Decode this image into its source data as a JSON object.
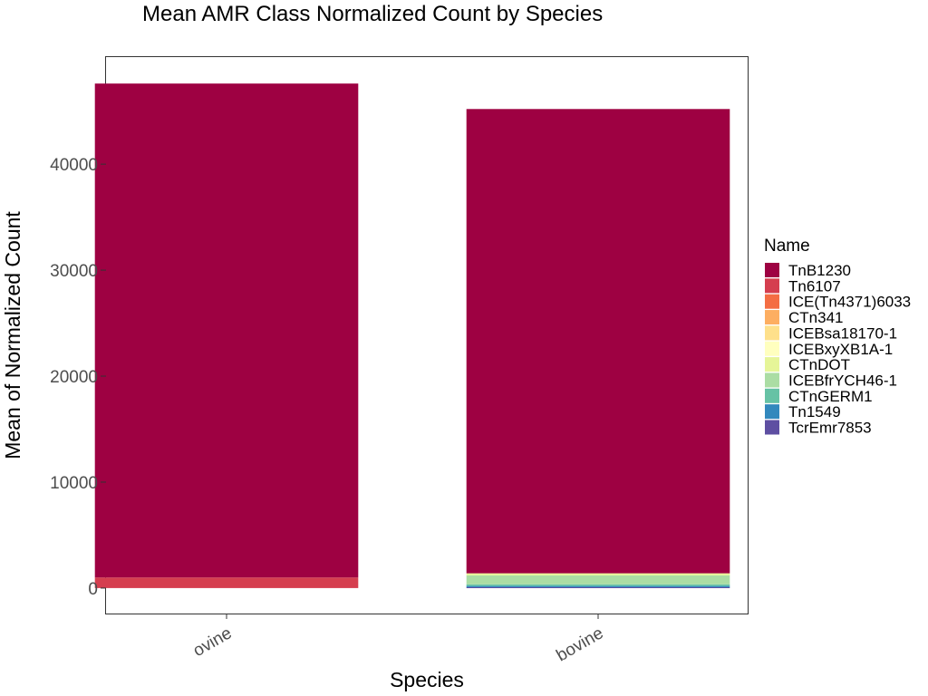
{
  "chart_data": {
    "type": "bar",
    "stacked": true,
    "title": "Mean AMR Class Normalized Count by Species",
    "xlabel": "Species",
    "ylabel": "Mean of Normalized Count",
    "categories": [
      "ovine",
      "bovine"
    ],
    "ylim": [
      -2400,
      50100
    ],
    "yticks": [
      0,
      10000,
      20000,
      30000,
      40000
    ],
    "yticklabels": [
      "0",
      "10000",
      "20000",
      "30000",
      "40000"
    ],
    "grid": false,
    "legend_title": "Name",
    "legend_position": "right",
    "series": [
      {
        "name": "TnB1230",
        "color": "#9E0142",
        "values": [
          46600,
          43800
        ]
      },
      {
        "name": "Tn6107",
        "color": "#D53E4F",
        "values": [
          1000,
          0
        ]
      },
      {
        "name": "ICE(Tn4371)6033",
        "color": "#F46D43",
        "values": [
          0,
          0
        ]
      },
      {
        "name": "CTn341",
        "color": "#FDAE61",
        "values": [
          0,
          0
        ]
      },
      {
        "name": "ICEBsa18170-1",
        "color": "#FEE08B",
        "values": [
          0,
          0
        ]
      },
      {
        "name": "ICEBxyXB1A-1",
        "color": "#FFFFBF",
        "values": [
          0,
          0
        ]
      },
      {
        "name": "CTnDOT",
        "color": "#E6F598",
        "values": [
          0,
          200
        ]
      },
      {
        "name": "ICEBfrYCH46-1",
        "color": "#ABDDA4",
        "values": [
          0,
          850
        ]
      },
      {
        "name": "CTnGERM1",
        "color": "#66C2A5",
        "values": [
          0,
          150
        ]
      },
      {
        "name": "Tn1549",
        "color": "#3288BD",
        "values": [
          0,
          120
        ]
      },
      {
        "name": "TcrEmr7853",
        "color": "#5E4FA2",
        "values": [
          0,
          80
        ]
      }
    ]
  }
}
